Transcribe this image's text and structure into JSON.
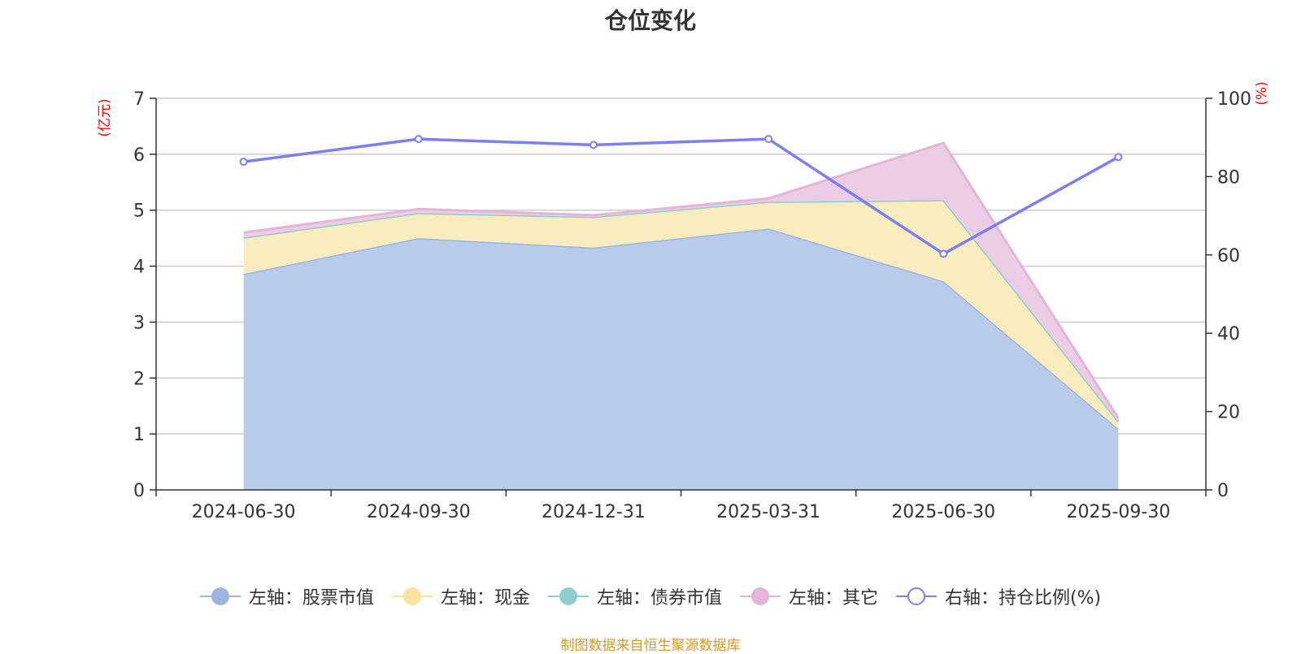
{
  "chart_data": {
    "type": "area",
    "title": "仓位变化",
    "categories": [
      "2024-06-30",
      "2024-09-30",
      "2024-12-31",
      "2025-03-31",
      "2025-06-30",
      "2025-09-30"
    ],
    "left_axis": {
      "unit": "(亿元)",
      "ylim": [
        0,
        7
      ],
      "ticks": [
        0,
        1,
        2,
        3,
        4,
        5,
        6,
        7
      ]
    },
    "right_axis": {
      "unit": "(%)",
      "ylim": [
        0,
        100
      ],
      "ticks": [
        0,
        20,
        40,
        60,
        80,
        100
      ]
    },
    "stacked_series": [
      {
        "name": "左轴：股票市值",
        "values": [
          3.86,
          4.5,
          4.33,
          4.67,
          3.73,
          1.09
        ],
        "line_color": "#9db5df",
        "fill_color": "#b8cbea"
      },
      {
        "name": "左轴：现金",
        "values": [
          0.65,
          0.45,
          0.55,
          0.48,
          1.45,
          0.13
        ],
        "line_color": "#f8e3a0",
        "fill_color": "#f9ecbf"
      },
      {
        "name": "左轴：债券市值",
        "values": [
          0,
          0,
          0,
          0,
          0,
          0
        ],
        "line_color": "#8fd0cf",
        "fill_color": "#a8dcdb"
      },
      {
        "name": "左轴：其它",
        "values": [
          0.09,
          0.07,
          0.03,
          0.06,
          1.02,
          0.06
        ],
        "line_color": "#e6b4d8",
        "fill_color": "#ebcde5"
      }
    ],
    "line_series": {
      "name": "右轴：持仓比例(%)",
      "values": [
        83.8,
        89.6,
        88.1,
        89.6,
        60.3,
        85.0
      ],
      "color": "#7b7ff0"
    },
    "grid": true,
    "legend_position": "bottom"
  },
  "legend": [
    {
      "label": "左轴：股票市值",
      "color": "#9db5df",
      "style": "filled"
    },
    {
      "label": "左轴：现金",
      "color": "#f8e3a0",
      "style": "filled"
    },
    {
      "label": "左轴：债券市值",
      "color": "#8fd0cf",
      "style": "filled"
    },
    {
      "label": "左轴：其它",
      "color": "#e6b4d8",
      "style": "filled"
    },
    {
      "label": "右轴：持仓比例(%)",
      "color": "#7b7ff0",
      "style": "hollow"
    }
  ],
  "source": "制图数据来自恒生聚源数据库"
}
